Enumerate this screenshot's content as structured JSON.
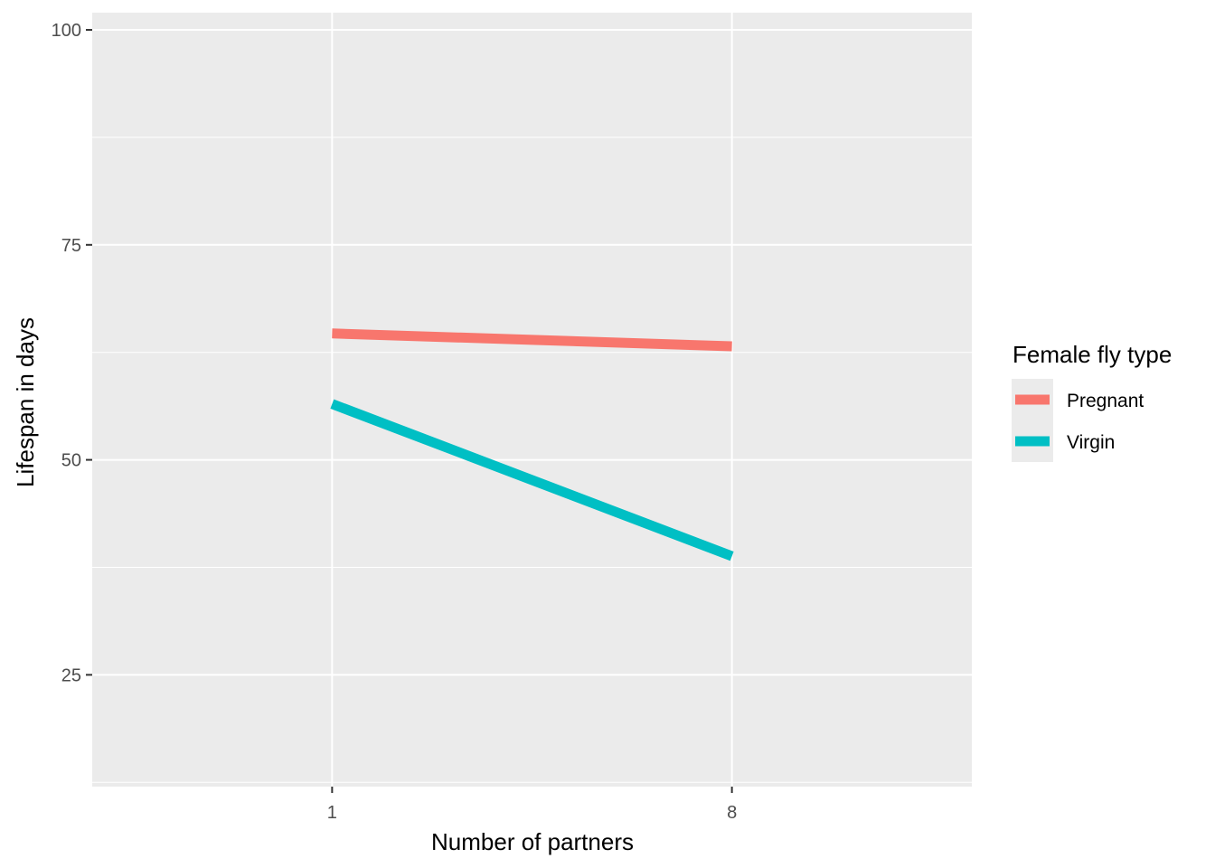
{
  "chart_data": {
    "type": "line",
    "xlabel": "Number of partners",
    "ylabel": "Lifespan in days",
    "categories": [
      "1",
      "8"
    ],
    "ylim": [
      12,
      102
    ],
    "yticks": [
      25,
      50,
      75,
      100
    ],
    "grid": true,
    "legend_position": "right",
    "legend_title": "Female fly type",
    "series": [
      {
        "name": "Pregnant",
        "color": "#F8766D",
        "values": [
          64.7,
          63.2
        ]
      },
      {
        "name": "Virgin",
        "color": "#00BFC4",
        "values": [
          56.5,
          38.8
        ]
      }
    ]
  }
}
